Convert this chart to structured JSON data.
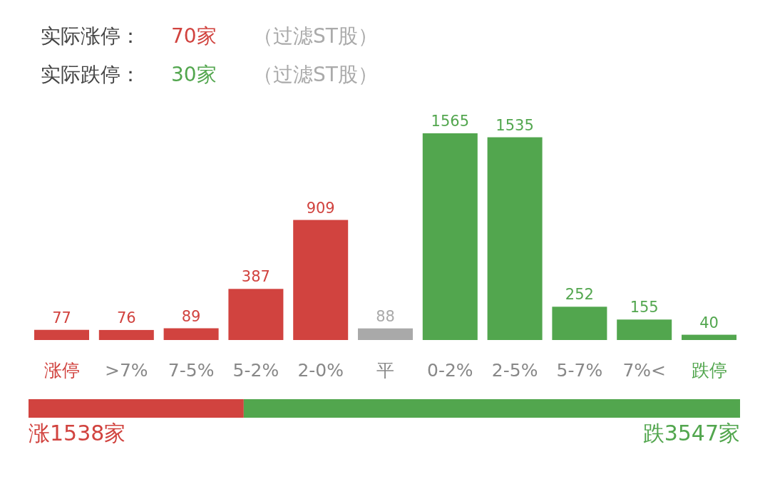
{
  "chart_data": [
    {
      "type": "bar",
      "categories": [
        "涨停",
        ">7%",
        "7-5%",
        "5-2%",
        "2-0%",
        "平",
        "0-2%",
        "2-5%",
        "5-7%",
        "7%<",
        "跌停"
      ],
      "values": [
        77,
        76,
        89,
        387,
        909,
        88,
        1565,
        1535,
        252,
        155,
        40
      ],
      "colors": [
        "#d1433f",
        "#d1433f",
        "#d1433f",
        "#d1433f",
        "#d1433f",
        "#a9a9a9",
        "#52a64e",
        "#52a64e",
        "#52a64e",
        "#52a64e",
        "#52a64e"
      ],
      "data_labels": true,
      "annotations": [
        "实际涨停：",
        "70家",
        "（过滤ST股）",
        "实际跌停：",
        "30家",
        "（过滤ST股）"
      ]
    },
    {
      "type": "bar",
      "orientation": "horizontal",
      "stacked": true,
      "categories": [
        null
      ],
      "series": [
        {
          "color": "#d1433f",
          "values": [
            1538
          ],
          "value_labels": [
            "涨1538家"
          ]
        },
        {
          "color": "#52a64e",
          "values": [
            3547
          ],
          "value_labels": [
            "跌3547家"
          ]
        }
      ]
    }
  ]
}
